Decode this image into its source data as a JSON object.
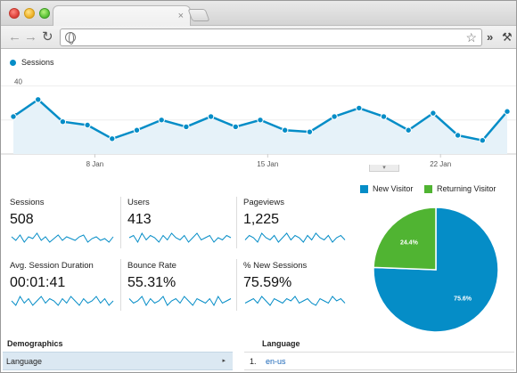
{
  "browser": {
    "tab_close_glyph": "×",
    "icons": [
      "back-arrow-icon",
      "forward-arrow-icon",
      "reload-icon",
      "globe-icon",
      "star-icon",
      "chevron-right-icon",
      "wrench-icon"
    ]
  },
  "main_chart": {
    "legend": "Sessions",
    "series_color": "#058dc7",
    "fill_color": "#e6f2f9"
  },
  "chart_data": {
    "type": "area",
    "ylim": [
      0,
      45
    ],
    "yticks": [
      "20",
      "40"
    ],
    "ytick_values": [
      20,
      40
    ],
    "xticks": [
      "8 Jan",
      "15 Jan",
      "22 Jan"
    ],
    "xtick_index": [
      3.3,
      10.3,
      17.3
    ],
    "series": [
      {
        "name": "Sessions",
        "values": [
          22,
          32,
          19,
          17,
          9,
          14,
          20,
          16,
          22,
          16,
          20,
          14,
          13,
          22,
          27,
          22,
          14,
          24,
          11,
          8,
          25
        ]
      }
    ],
    "grid": true
  },
  "metrics": [
    {
      "label": "Sessions",
      "value": "508",
      "spark": [
        6,
        4,
        7,
        3,
        6,
        5,
        8,
        4,
        6,
        3,
        5,
        7,
        4,
        6,
        5,
        4,
        6,
        7,
        3,
        5,
        6,
        4,
        5,
        3,
        6
      ]
    },
    {
      "label": "Users",
      "value": "413",
      "spark": [
        5,
        6,
        3,
        7,
        4,
        6,
        5,
        3,
        6,
        4,
        7,
        5,
        4,
        6,
        3,
        5,
        7,
        4,
        5,
        6,
        3,
        5,
        4,
        6,
        5
      ]
    },
    {
      "label": "Pageviews",
      "value": "1,225",
      "spark": [
        4,
        6,
        5,
        3,
        7,
        5,
        4,
        6,
        3,
        5,
        7,
        4,
        6,
        5,
        3,
        6,
        4,
        7,
        5,
        4,
        6,
        3,
        5,
        6,
        4
      ]
    },
    {
      "label": "Avg. Session Duration",
      "value": "00:01:41",
      "spark": [
        5,
        3,
        7,
        4,
        6,
        3,
        5,
        7,
        4,
        6,
        5,
        3,
        6,
        4,
        7,
        5,
        3,
        6,
        4,
        5,
        7,
        4,
        6,
        3,
        5
      ]
    },
    {
      "label": "Bounce Rate",
      "value": "55.31%",
      "spark": [
        6,
        4,
        5,
        7,
        3,
        6,
        4,
        5,
        7,
        3,
        5,
        6,
        4,
        7,
        5,
        3,
        6,
        5,
        4,
        6,
        3,
        7,
        4,
        5,
        6
      ]
    },
    {
      "label": "% New Sessions",
      "value": "75.59%",
      "spark": [
        4,
        5,
        6,
        4,
        7,
        5,
        3,
        6,
        5,
        4,
        6,
        5,
        7,
        4,
        5,
        6,
        4,
        3,
        6,
        5,
        4,
        7,
        5,
        6,
        4
      ]
    }
  ],
  "pie": {
    "legend": [
      {
        "label": "New Visitor",
        "color": "#058dc7"
      },
      {
        "label": "Returning Visitor",
        "color": "#50b432"
      }
    ],
    "slices": [
      {
        "label": "New Visitor",
        "value": 75.6,
        "text": "75.6%",
        "color": "#058dc7"
      },
      {
        "label": "Returning Visitor",
        "value": 24.4,
        "text": "24.4%",
        "color": "#50b432"
      }
    ]
  },
  "demographics": {
    "title": "Demographics",
    "row_label": "Language",
    "row_arrow": "▸"
  },
  "language": {
    "title": "Language",
    "rows": [
      {
        "num": "1.",
        "value": "en-us"
      }
    ]
  }
}
